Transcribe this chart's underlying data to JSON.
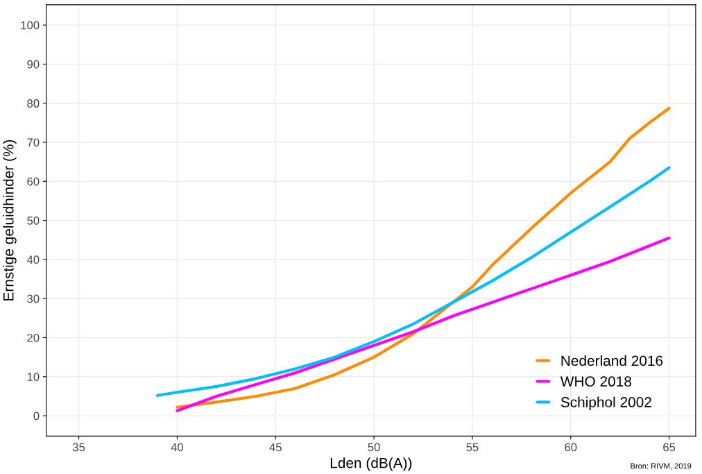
{
  "chart_data": {
    "type": "line",
    "xlabel": "Lden (dB(A))",
    "ylabel": "Ernstige geluidhinder (%)",
    "xlim": [
      33.35,
      66.35
    ],
    "xticks": [
      35,
      40,
      45,
      50,
      55,
      60,
      65
    ],
    "ylim": [
      -5.2,
      105.2
    ],
    "yticks": [
      0,
      10,
      20,
      30,
      40,
      50,
      60,
      70,
      80,
      90,
      100
    ],
    "grid": true,
    "legend": "bottom right",
    "marker": "none",
    "line_style": "solid",
    "annotations": [
      "Bron: RIVM, 2019"
    ],
    "series": [
      {
        "name": "Nederland 2016",
        "color": "#ff8c00",
        "x": [
          40,
          42,
          44,
          46,
          48,
          50,
          52,
          54,
          55,
          56,
          58,
          60,
          62,
          63,
          64,
          65
        ],
        "values": [
          2.2,
          3.5,
          5.0,
          7.0,
          10.5,
          15,
          21,
          29,
          33,
          38.5,
          48,
          57,
          65,
          71,
          75,
          78.7
        ]
      },
      {
        "name": "WHO 2018",
        "color": "#ff00ff",
        "x": [
          40,
          42,
          44,
          46,
          48,
          50,
          52,
          54,
          56,
          58,
          60,
          62,
          64,
          65
        ],
        "values": [
          1.3,
          5,
          8,
          11,
          14.5,
          18,
          21.5,
          25.5,
          29,
          32.5,
          36,
          39.5,
          43.5,
          45.5
        ]
      },
      {
        "name": "Schiphol 2002",
        "color": "#00bfff",
        "x": [
          39,
          40,
          42,
          44,
          46,
          48,
          50,
          52,
          54,
          56,
          58,
          60,
          62,
          64,
          65
        ],
        "values": [
          5.2,
          6,
          7.5,
          9.5,
          12,
          15,
          19,
          23.5,
          29,
          34.5,
          40.5,
          47,
          53.5,
          60,
          63.5
        ]
      }
    ]
  }
}
